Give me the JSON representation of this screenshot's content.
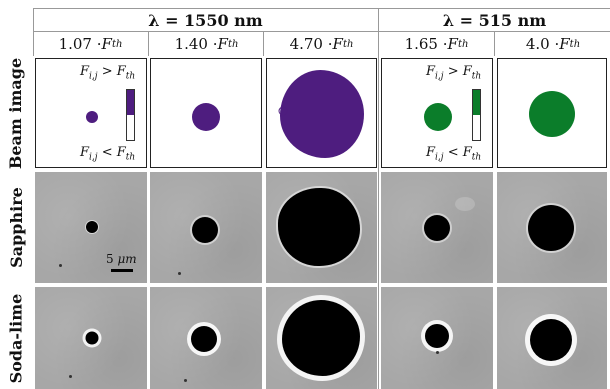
{
  "groups": [
    {
      "label": "λ = 1550 nm"
    },
    {
      "label": "λ = 515 nm"
    }
  ],
  "columns": [
    {
      "factor": "1.07 · ",
      "symbol": "F",
      "subscript": "th"
    },
    {
      "factor": "1.40 · ",
      "symbol": "F",
      "subscript": "th"
    },
    {
      "factor": "4.70 · ",
      "symbol": "F",
      "subscript": "th"
    },
    {
      "factor": "1.65 · ",
      "symbol": "F",
      "subscript": "th"
    },
    {
      "factor": "4.0 · ",
      "symbol": "F",
      "subscript": "th"
    }
  ],
  "rows": [
    {
      "label": "Beam image"
    },
    {
      "label": "Sapphire"
    },
    {
      "label": "Soda-lime"
    }
  ],
  "beam_labels": {
    "upper": {
      "sym": "F",
      "sub": "i,j",
      "rel": " > ",
      "sym2": "F",
      "sub2": "th"
    },
    "lower": {
      "sym": "F",
      "sub": "i,j",
      "rel": " < ",
      "sym2": "F",
      "sub2": "th"
    }
  },
  "scale_bar": {
    "value": "5 ",
    "unit": "μm"
  },
  "colors": {
    "ir_spot": "#4e1d7f",
    "green_spot": "#0b7d2a",
    "sem_background": "#a7a7a7",
    "crater": "#000000",
    "rim": "#ffffff"
  }
}
